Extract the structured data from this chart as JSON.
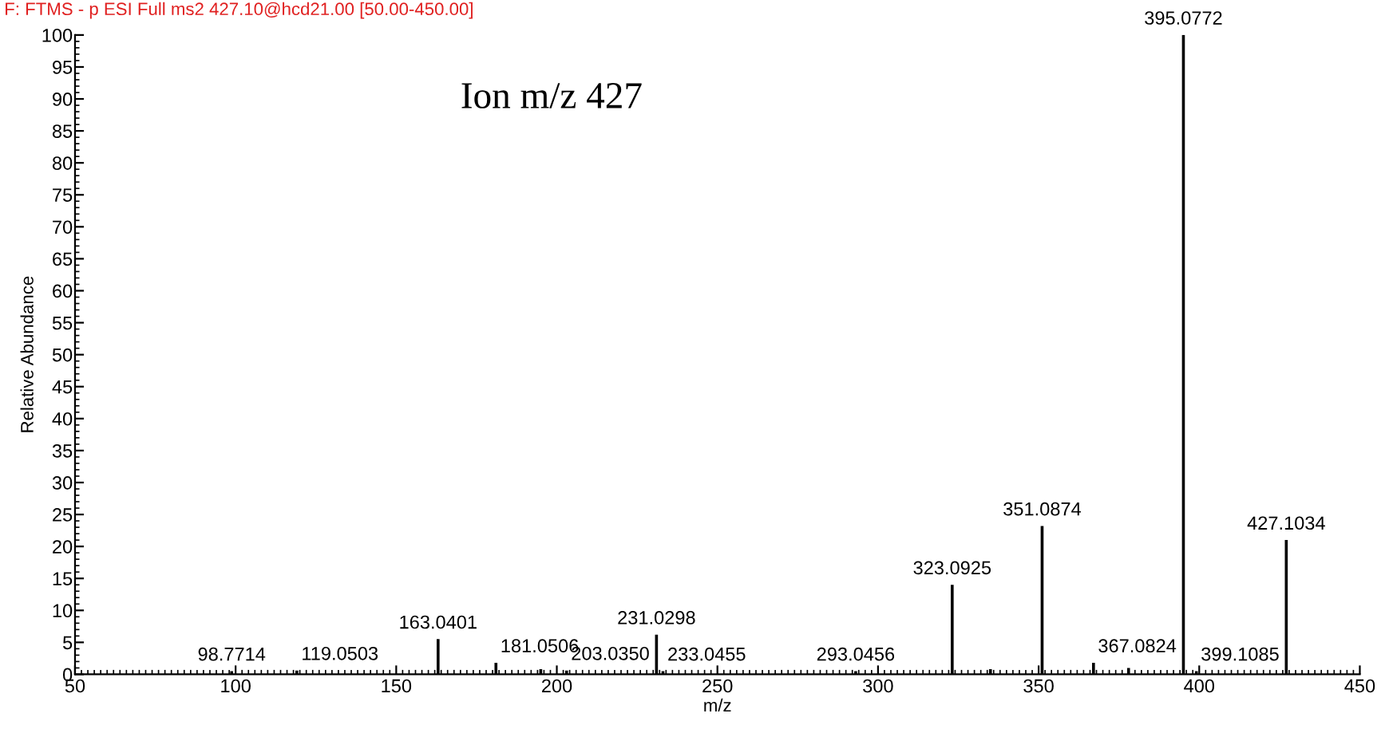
{
  "chart_data": {
    "type": "bar",
    "title": "F: FTMS - p ESI Full ms2 427.10@hcd21.00 [50.00-450.00]",
    "xlabel": "m/z",
    "ylabel": "Relative Abundance",
    "annotations": [
      "Ion m/z 427",
      {
        "text": "98.7714",
        "x": 98.7714,
        "y": 0.5
      },
      {
        "text": "119.0503",
        "x": 119.0503,
        "y": 0.6
      },
      {
        "text": "163.0401",
        "x": 163.0401,
        "y": 5.5
      },
      {
        "text": "181.0506",
        "x": 181.0506,
        "y": 1.8
      },
      {
        "text": "203.0350",
        "x": 203.035,
        "y": 0.6
      },
      {
        "text": "231.0298",
        "x": 231.0298,
        "y": 6.2
      },
      {
        "text": "233.0455",
        "x": 233.0455,
        "y": 0.5
      },
      {
        "text": "293.0456",
        "x": 293.0456,
        "y": 0.5
      },
      {
        "text": "323.0925",
        "x": 323.0925,
        "y": 14
      },
      {
        "text": "351.0874",
        "x": 351.0874,
        "y": 23.2
      },
      {
        "text": "367.0824",
        "x": 367.0824,
        "y": 1.8
      },
      {
        "text": "395.0772",
        "x": 395.0772,
        "y": 100
      },
      {
        "text": "399.1085",
        "x": 399.1085,
        "y": 0.5
      },
      {
        "text": "427.1034",
        "x": 427.1034,
        "y": 21
      }
    ],
    "x": [
      98.7714,
      119.0503,
      163.0401,
      181.0506,
      195.0,
      203.035,
      231.0298,
      233.0455,
      293.0456,
      323.0925,
      335.0,
      351.0874,
      367.0824,
      378.0,
      395.0772,
      399.1085,
      427.1034
    ],
    "values": [
      0.5,
      0.6,
      5.5,
      1.8,
      0.8,
      0.6,
      6.2,
      0.5,
      0.5,
      14,
      0.8,
      23.2,
      1.8,
      1.0,
      100,
      0.5,
      21
    ],
    "color": "#000000",
    "xlim": [
      50,
      450
    ],
    "ylim": [
      0,
      100
    ],
    "xticks": [
      50,
      100,
      150,
      200,
      250,
      300,
      350,
      400,
      450
    ],
    "yticks": [
      0,
      5,
      10,
      15,
      20,
      25,
      30,
      35,
      40,
      45,
      50,
      55,
      60,
      65,
      70,
      75,
      80,
      85,
      90,
      95,
      100
    ],
    "grid": false
  }
}
